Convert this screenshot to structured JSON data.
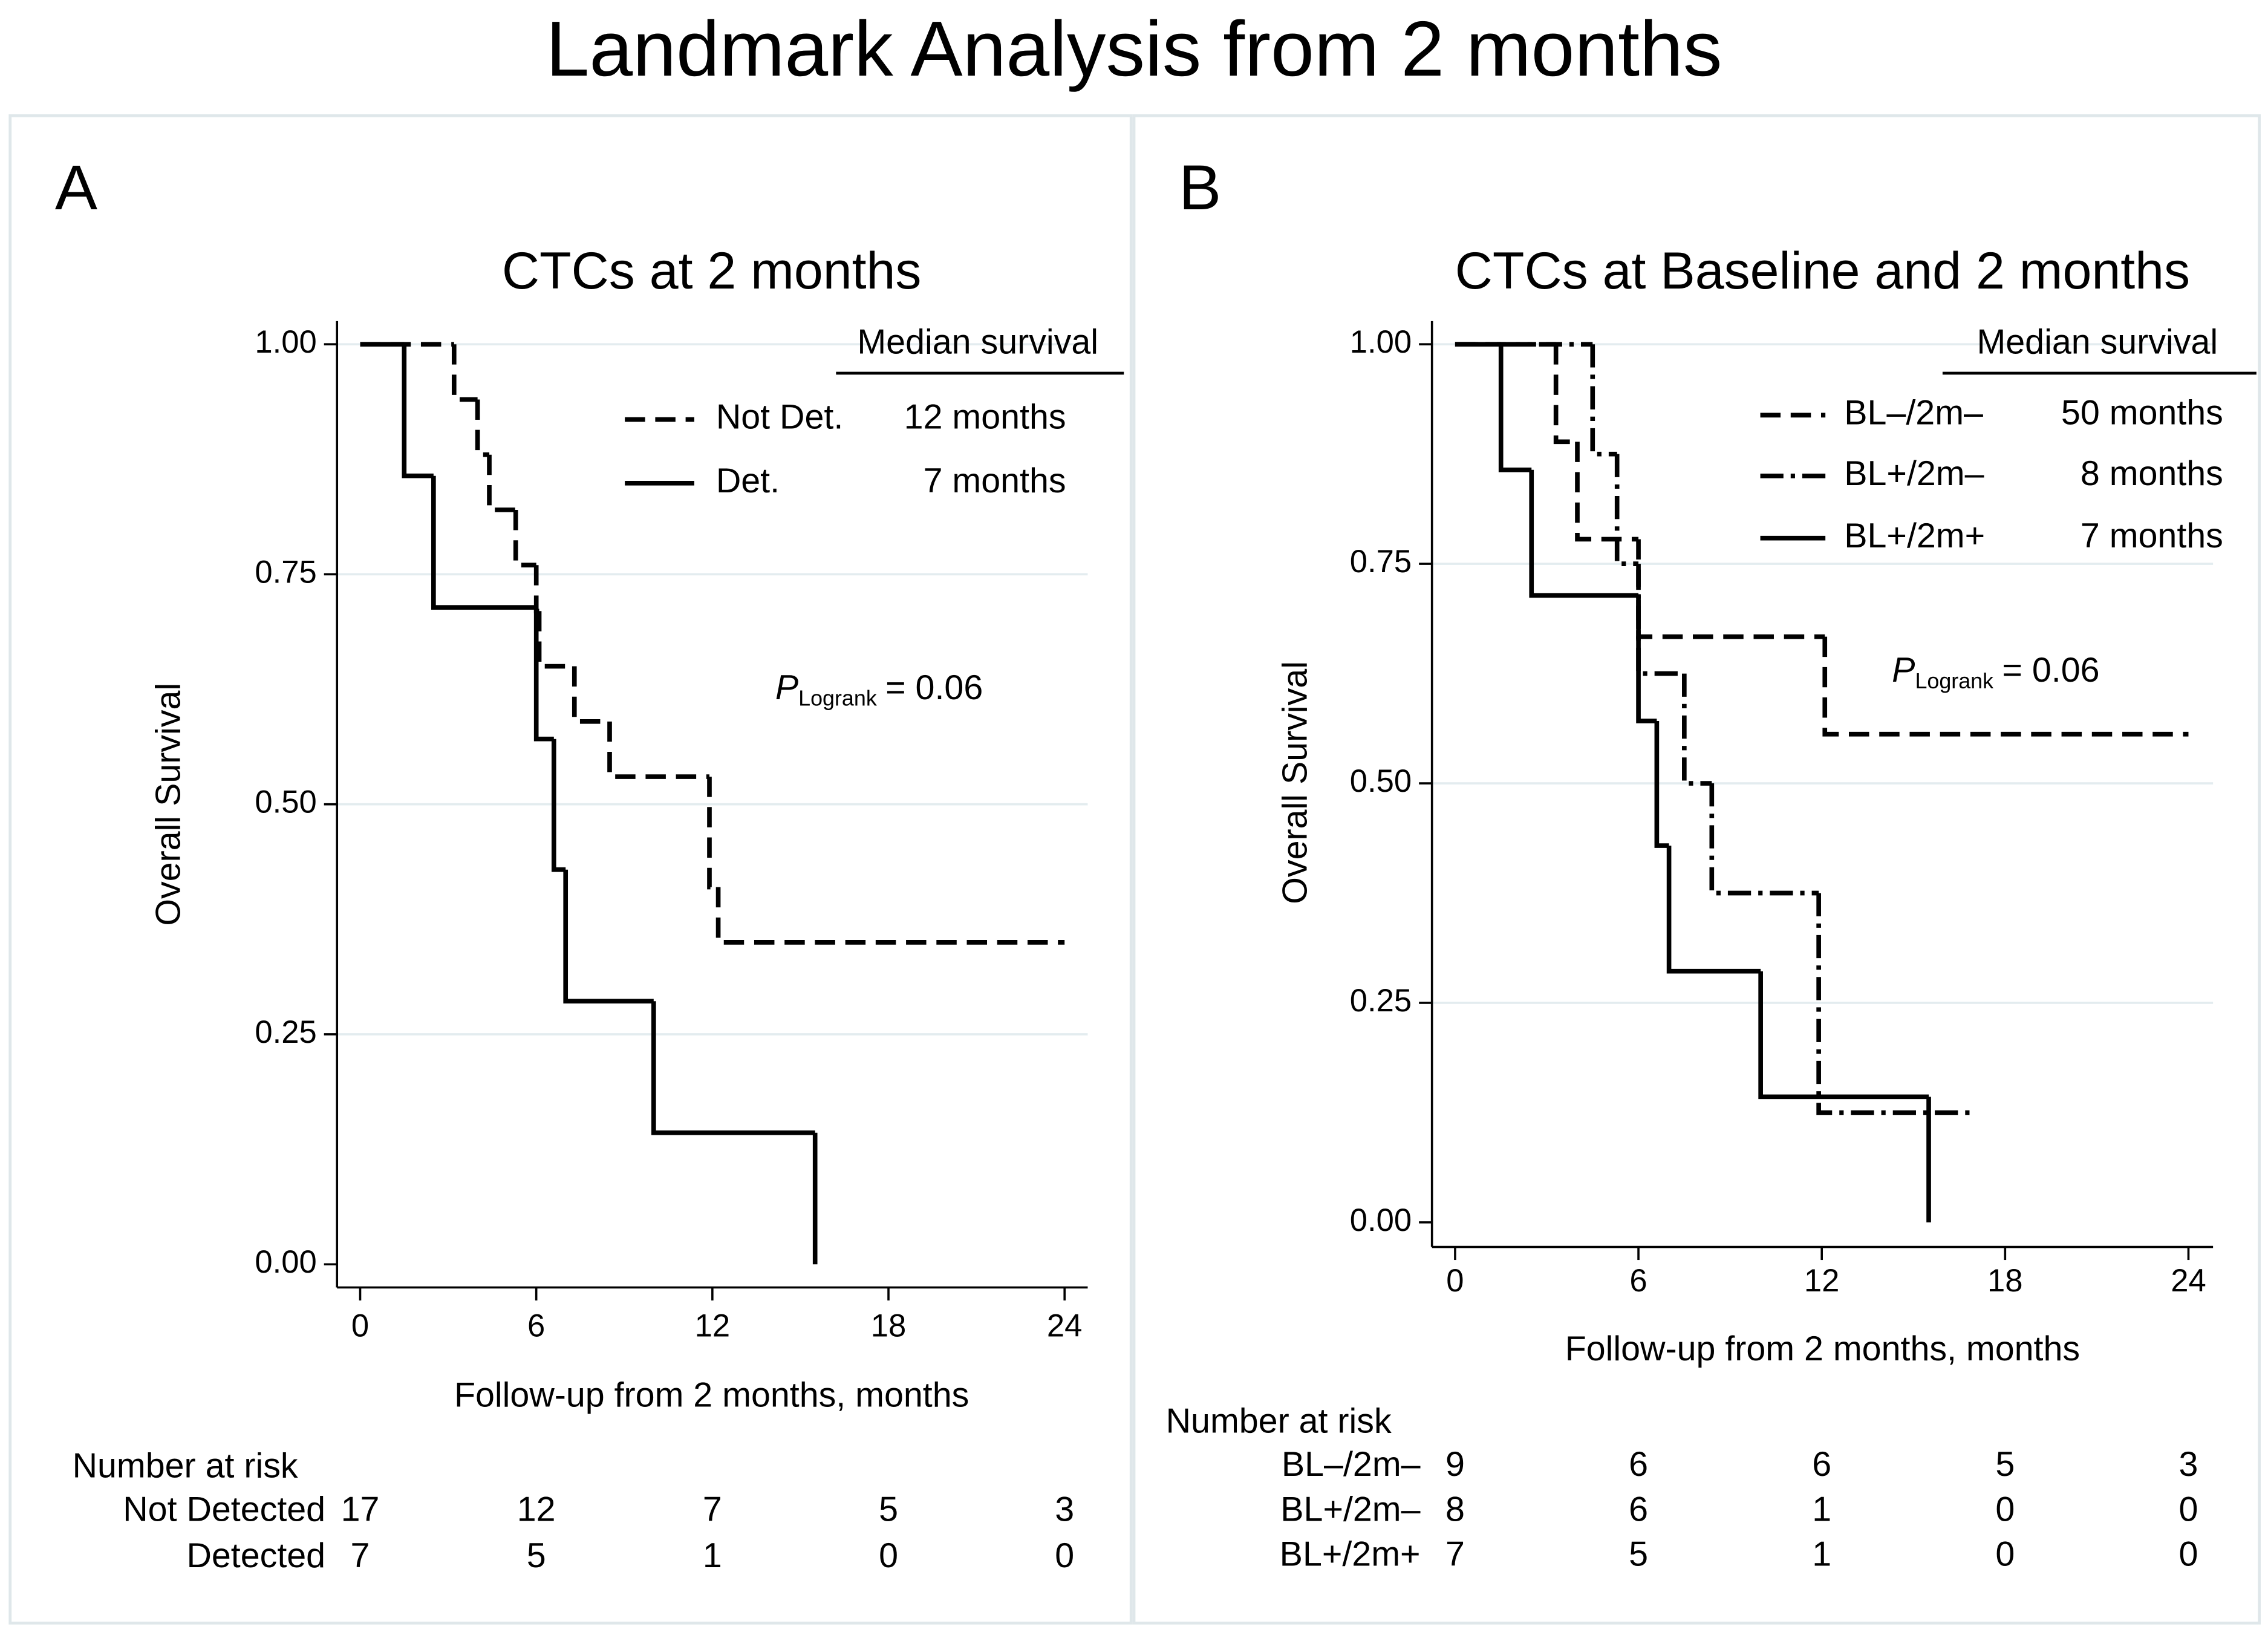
{
  "title": "Landmark Analysis from 2 months",
  "chart_data": [
    {
      "type": "step",
      "panel": "A",
      "title": "CTCs at 2 months",
      "x_label": "Follow-up from 2 months, months",
      "y_label": "Overall Survival",
      "xlim": [
        0,
        24
      ],
      "xticks": [
        0,
        6,
        12,
        18,
        24
      ],
      "ylim": [
        0,
        1
      ],
      "yticks": [
        {
          "value": 0,
          "label": "0.00"
        },
        {
          "value": 0.25,
          "label": "0.25"
        },
        {
          "value": 0.5,
          "label": "0.50"
        },
        {
          "value": 0.75,
          "label": "0.75"
        },
        {
          "value": 1,
          "label": "1.00"
        }
      ],
      "grid": true,
      "legend_title": "Median survival",
      "legend_position": "upper right",
      "series": [
        {
          "name": "Not Det.",
          "median": "12 months",
          "color": "#000000",
          "dash": "dashed",
          "x": [
            0,
            3.2,
            4.0,
            4.4,
            5.3,
            6.0,
            6.1,
            7.3,
            8.5,
            11.9,
            12.2,
            24
          ],
          "values": [
            1,
            0.94,
            0.88,
            0.82,
            0.76,
            0.71,
            0.65,
            0.59,
            0.53,
            0.41,
            0.35,
            0.35
          ]
        },
        {
          "name": "Det.",
          "median": "7 months",
          "color": "#000000",
          "dash": "solid",
          "x": [
            0,
            1.5,
            2.5,
            6.0,
            6.6,
            7.0,
            10.0,
            15.5
          ],
          "values": [
            1,
            0.857,
            0.714,
            0.571,
            0.429,
            0.286,
            0.143,
            0
          ]
        }
      ],
      "annotation": {
        "p": "P",
        "sub": "Logrank",
        "text": "= 0.06"
      },
      "risk_table": {
        "title": "Number at risk",
        "rows": [
          {
            "label": "Not Detected",
            "counts": [
              17,
              12,
              7,
              5,
              3
            ]
          },
          {
            "label": "Detected",
            "counts": [
              7,
              5,
              1,
              0,
              0
            ]
          }
        ]
      }
    },
    {
      "type": "step",
      "panel": "B",
      "title": "CTCs at Baseline and 2 months",
      "x_label": "Follow-up from 2 months, months",
      "y_label": "Overall Survival",
      "xlim": [
        0,
        24
      ],
      "xticks": [
        0,
        6,
        12,
        18,
        24
      ],
      "ylim": [
        0,
        1
      ],
      "yticks": [
        {
          "value": 0,
          "label": "0.00"
        },
        {
          "value": 0.25,
          "label": "0.25"
        },
        {
          "value": 0.5,
          "label": "0.50"
        },
        {
          "value": 0.75,
          "label": "0.75"
        },
        {
          "value": 1,
          "label": "1.00"
        }
      ],
      "grid": true,
      "legend_title": "Median survival",
      "legend_position": "upper right",
      "series": [
        {
          "name": "BL–/2m–",
          "median": "50 months",
          "color": "#000000",
          "dash": "dashed",
          "x": [
            0,
            3.3,
            4.0,
            6.0,
            12.1,
            24
          ],
          "values": [
            1,
            0.889,
            0.778,
            0.667,
            0.556,
            0.556
          ]
        },
        {
          "name": "BL+/2m–",
          "median": "8 months",
          "color": "#000000",
          "dash": "dashdot",
          "x": [
            0,
            4.5,
            5.3,
            6.0,
            7.5,
            8.4,
            11.9,
            17
          ],
          "values": [
            1,
            0.875,
            0.75,
            0.625,
            0.5,
            0.375,
            0.125,
            0.125
          ]
        },
        {
          "name": "BL+/2m+",
          "median": "7 months",
          "color": "#000000",
          "dash": "solid",
          "x": [
            0,
            1.5,
            2.5,
            6.0,
            6.6,
            7.0,
            10.0,
            15.5
          ],
          "values": [
            1,
            0.857,
            0.714,
            0.571,
            0.429,
            0.286,
            0.143,
            0
          ]
        }
      ],
      "annotation": {
        "p": "P",
        "sub": "Logrank",
        "text": "= 0.06"
      },
      "risk_table": {
        "title": "Number at risk",
        "rows": [
          {
            "label": "BL–/2m–",
            "counts": [
              9,
              6,
              6,
              5,
              3
            ]
          },
          {
            "label": "BL+/2m–",
            "counts": [
              8,
              6,
              1,
              0,
              0
            ]
          },
          {
            "label": "BL+/2m+",
            "counts": [
              7,
              5,
              1,
              0,
              0
            ]
          }
        ]
      }
    }
  ]
}
